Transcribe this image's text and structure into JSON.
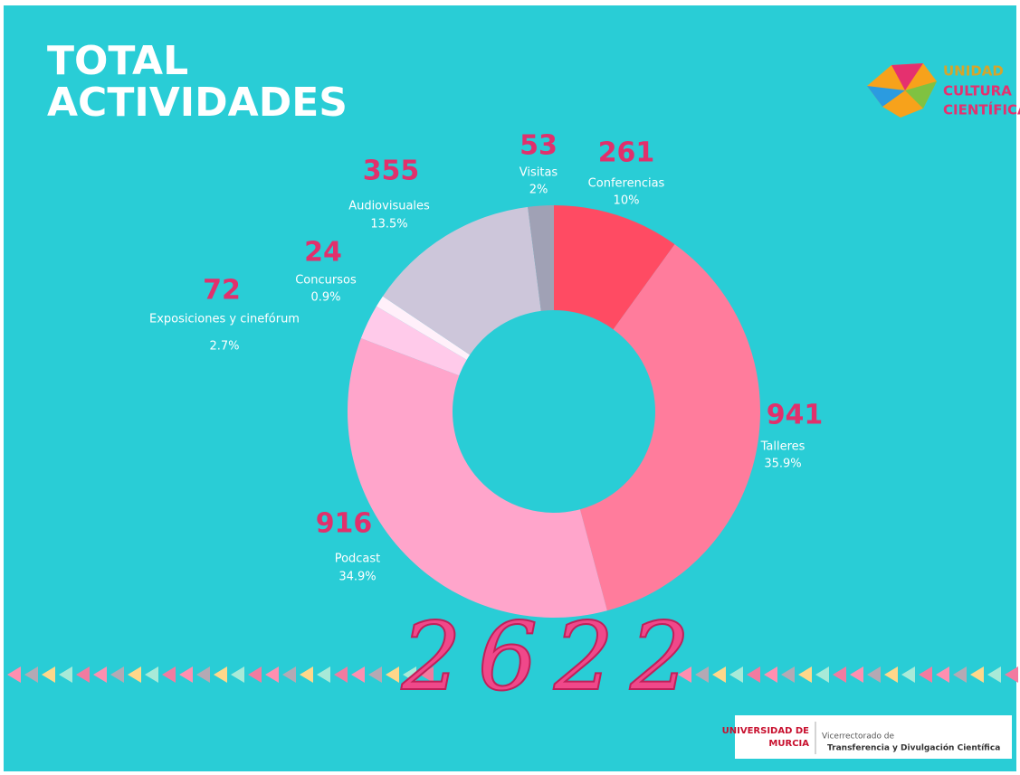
{
  "title": [
    "TOTAL",
    "ACTIVIDADES"
  ],
  "logo": [
    "UNIDAD",
    "CULTURA",
    "CIENTÍFICA"
  ],
  "chart_data": {
    "type": "pie",
    "categories": [
      "Conferencias",
      "Talleres",
      "Podcast",
      "Exposiciones y cinefórum",
      "Concursos",
      "Audiovisuales",
      "Visitas"
    ],
    "values": [
      261,
      941,
      916,
      72,
      24,
      355,
      53
    ],
    "shares": [
      "10%",
      "35.9%",
      "34.9%",
      "2.7%",
      "0.9%",
      "13.5%",
      "2%"
    ],
    "colors": [
      "#ff4b63",
      "#ff7c9c",
      "#ffa5cb",
      "#ffcaea",
      "#fff0fa",
      "#cdc6da",
      "#a0a1b5"
    ],
    "total": "2622"
  },
  "footer": {
    "university": [
      "UNIVERSIDAD DE",
      "MURCIA"
    ],
    "office": [
      "Vicerrectorado de",
      "Transferencia y Divulgación Científica"
    ]
  }
}
